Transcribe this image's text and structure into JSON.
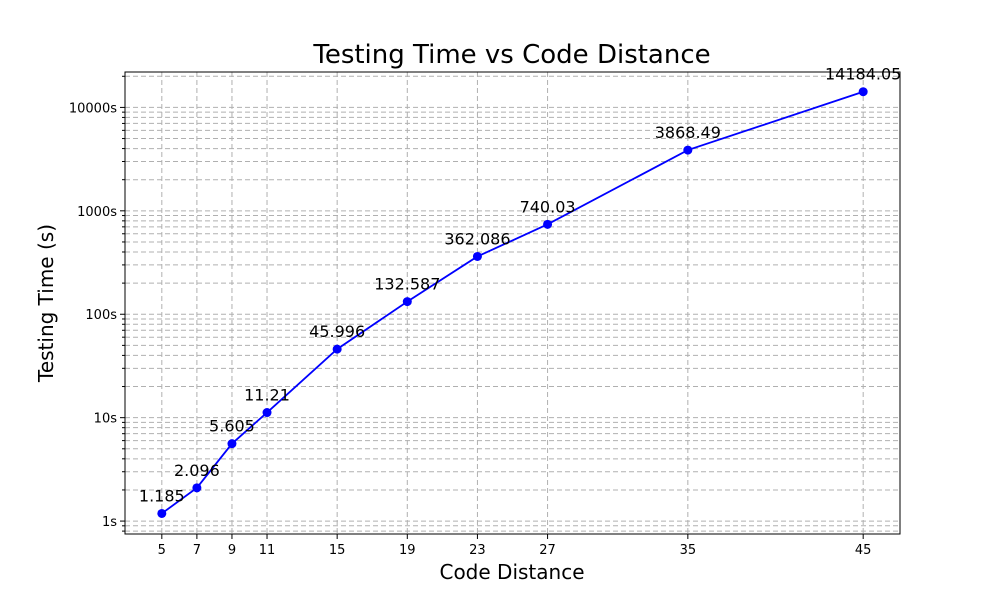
{
  "chart_data": {
    "type": "line",
    "title": "Testing Time vs Code Distance",
    "xlabel": "Code Distance",
    "ylabel": "Testing Time (s)",
    "yscale": "log",
    "ylim": [
      0.75,
      22000
    ],
    "xlim": [
      2.9,
      47.1
    ],
    "grid": true,
    "x_ticks": [
      5,
      7,
      9,
      11,
      15,
      19,
      23,
      27,
      35,
      45
    ],
    "x_tick_labels": [
      "5",
      "7",
      "9",
      "11",
      "15",
      "19",
      "23",
      "27",
      "35",
      "45"
    ],
    "y_major_ticks": [
      1,
      10,
      100,
      1000,
      10000
    ],
    "y_tick_labels": [
      "1s",
      "10s",
      "100s",
      "1000s",
      "10000s"
    ],
    "series": [
      {
        "name": "Testing Time",
        "color": "#0000ff",
        "x": [
          5,
          7,
          9,
          11,
          15,
          19,
          23,
          27,
          35,
          45
        ],
        "values": [
          1.185,
          2.096,
          5.605,
          11.21,
          45.996,
          132.587,
          362.086,
          740.03,
          3868.49,
          14184.05
        ],
        "labels": [
          "1.185",
          "2.096",
          "5.605",
          "11.21",
          "45.996",
          "132.587",
          "362.086",
          "740.03",
          "3868.49",
          "14184.05"
        ]
      }
    ]
  }
}
